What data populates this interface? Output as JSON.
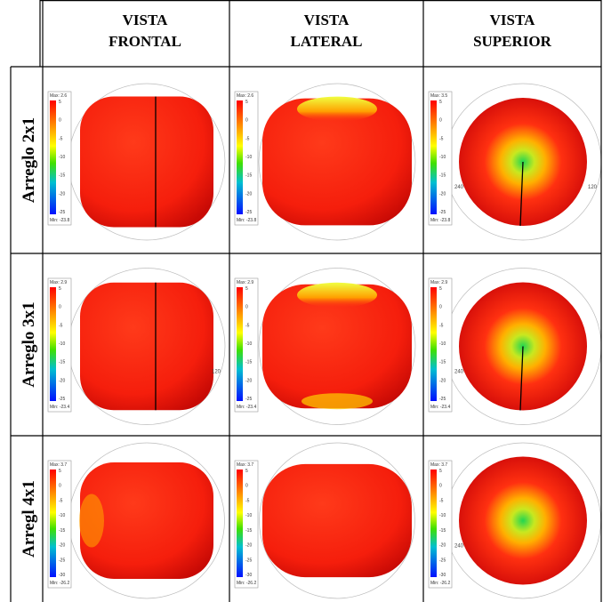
{
  "header": {
    "columns": [
      {
        "line1": "VISTA",
        "line2": "FRONTAL"
      },
      {
        "line1": "VISTA",
        "line2": "LATERAL"
      },
      {
        "line1": "VISTA",
        "line2": "SUPERIOR"
      }
    ]
  },
  "rows": [
    {
      "label": "Arreglo 2x1",
      "cells": [
        {
          "max": "Max: 2.6",
          "min": "Min: -23.8",
          "scale": [
            "5",
            "0",
            "-5",
            "-10",
            "-15",
            "-20",
            "-25"
          ],
          "axis_labels": []
        },
        {
          "max": "Max: 2.6",
          "min": "Min: -23.8",
          "scale": [
            "5",
            "0",
            "-5",
            "-10",
            "-15",
            "-20",
            "-25"
          ],
          "axis_labels": []
        },
        {
          "max": "Max: 3.5",
          "min": "Min: -23.8",
          "scale": [
            "5",
            "0",
            "-5",
            "-10",
            "-15",
            "-20",
            "-25"
          ],
          "axis_labels": [
            "240",
            "120"
          ]
        }
      ]
    },
    {
      "label": "Arreglo 3x1",
      "cells": [
        {
          "max": "Max: 2.9",
          "min": "Min: -23.4",
          "scale": [
            "5",
            "0",
            "-5",
            "-10",
            "-15",
            "-20",
            "-25"
          ],
          "axis_labels": [
            "",
            "120"
          ]
        },
        {
          "max": "Max: 2.9",
          "min": "Min: -23.4",
          "scale": [
            "5",
            "0",
            "-5",
            "-10",
            "-15",
            "-20",
            "-25"
          ],
          "axis_labels": []
        },
        {
          "max": "Max: 2.9",
          "min": "Min: -23.4",
          "scale": [
            "5",
            "0",
            "-5",
            "-10",
            "-15",
            "-20",
            "-25"
          ],
          "axis_labels": [
            "240"
          ]
        }
      ]
    },
    {
      "label": "Arregl 4x1",
      "cells": [
        {
          "max": "Max: 3.7",
          "min": "Min: -26.2",
          "scale": [
            "5",
            "0",
            "-5",
            "-10",
            "-15",
            "-20",
            "-25",
            "-30"
          ],
          "axis_labels": []
        },
        {
          "max": "Max: 3.7",
          "min": "Min: -26.2",
          "scale": [
            "5",
            "0",
            "-5",
            "-10",
            "-15",
            "-20",
            "-25",
            "-30"
          ],
          "axis_labels": []
        },
        {
          "max": "Max: 3.7",
          "min": "Min: -26.2",
          "scale": [
            "5",
            "0",
            "-5",
            "-10",
            "-15",
            "-20",
            "-25",
            "-30"
          ],
          "axis_labels": [
            "240"
          ]
        }
      ]
    }
  ]
}
